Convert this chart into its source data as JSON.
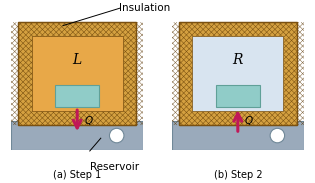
{
  "insulation_color": "#D4A040",
  "insulation_dark": "#7A5010",
  "hatch_color": "#5A3500",
  "gas_left_color": "#E8A848",
  "gas_right_color": "#D8E4F0",
  "piston_color": "#90CCC8",
  "piston_border": "#60A098",
  "reservoir_color": "#9AAABB",
  "reservoir_border": "#708898",
  "arrow_color": "#C01858",
  "bg_color": "#FFFFFF",
  "label_L": "L",
  "label_R": "R",
  "label_Q": "Q",
  "label_insulation": "Insulation",
  "label_reservoir": "Reservoir",
  "label_a": "(a) Step 1",
  "label_b": "(b) Step 2",
  "fig_width": 3.15,
  "fig_height": 1.83,
  "dpi": 100
}
